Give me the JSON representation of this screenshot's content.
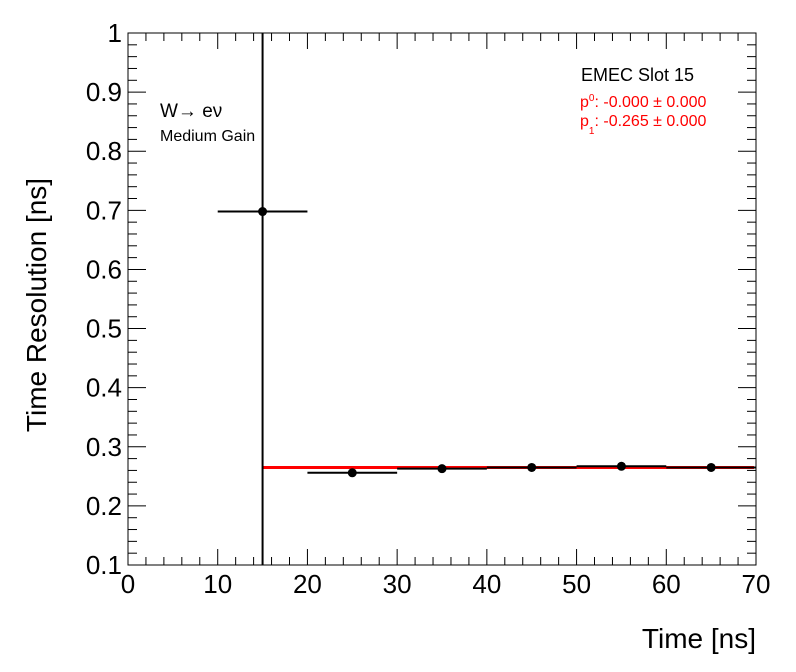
{
  "chart_data": {
    "type": "scatter",
    "xlabel": "Time [ns]",
    "ylabel": "Time Resolution [ns]",
    "xlim": [
      0,
      70
    ],
    "ylim": [
      0.1,
      1
    ],
    "x_ticks": [
      "0",
      "10",
      "20",
      "30",
      "40",
      "50",
      "60",
      "70"
    ],
    "y_ticks": [
      "0.1",
      "0.2",
      "0.3",
      "0.4",
      "0.5",
      "0.6",
      "0.7",
      "0.8",
      "0.9",
      "1"
    ],
    "grid": false,
    "points": [
      {
        "x": 15,
        "y": 0.698,
        "xerr": 5,
        "yerr": 0.6
      },
      {
        "x": 25,
        "y": 0.256,
        "xerr": 5,
        "yerr": 0.0
      },
      {
        "x": 35,
        "y": 0.263,
        "xerr": 5,
        "yerr": 0.0
      },
      {
        "x": 45,
        "y": 0.265,
        "xerr": 5,
        "yerr": 0.0
      },
      {
        "x": 55,
        "y": 0.267,
        "xerr": 5,
        "yerr": 0.0
      },
      {
        "x": 65,
        "y": 0.265,
        "xerr": 5,
        "yerr": 0.0
      }
    ],
    "fit": {
      "x_start": 15,
      "x_end": 70,
      "y": 0.265,
      "color": "#ff0000"
    },
    "marker_color": "#000000",
    "annotations": {
      "process": "W→ eν",
      "gain": "Medium Gain",
      "slot": "EMEC Slot 15",
      "p0_name": "p",
      "p0_sub": "0",
      "p0_value": ": -0.000 ± 0.000",
      "p1_name": "p",
      "p1_sub": "1",
      "p1_value": ": -0.265 ± 0.000"
    }
  }
}
